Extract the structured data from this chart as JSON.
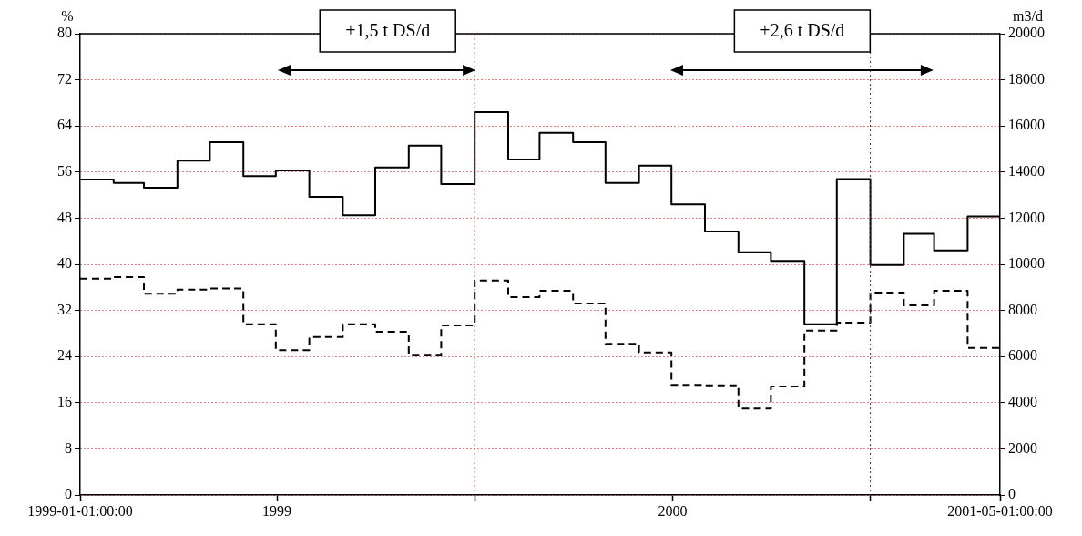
{
  "chart_data": {
    "type": "step",
    "x": [
      "1999-01",
      "1999-02",
      "1999-03",
      "1999-04",
      "1999-05",
      "1999-06",
      "1999-07",
      "1999-08",
      "1999-09",
      "1999-10",
      "1999-11",
      "1999-12",
      "2000-01",
      "2000-02",
      "2000-03",
      "2000-04",
      "2000-05",
      "2000-06",
      "2000-07",
      "2000-08",
      "2000-09",
      "2000-10",
      "2000-11",
      "2000-12",
      "2001-01",
      "2001-02",
      "2001-03",
      "2001-04",
      "2001-05"
    ],
    "series": [
      {
        "color": "#000000",
        "line_style": "solid",
        "values": [
          54.7,
          54.1,
          53.3,
          58.0,
          61.2,
          55.3,
          56.3,
          51.7,
          48.5,
          56.8,
          60.6,
          53.9,
          66.4,
          58.2,
          62.8,
          61.2,
          54.1,
          57.1,
          50.4,
          45.7,
          42.1,
          40.6,
          29.6,
          54.8,
          39.9,
          45.3,
          42.4,
          48.3,
          48.3
        ]
      },
      {
        "color": "#000000",
        "line_style": "dashed",
        "values": [
          37.5,
          37.8,
          34.9,
          35.6,
          35.8,
          29.6,
          25.1,
          27.4,
          29.6,
          28.3,
          24.3,
          29.4,
          37.2,
          34.3,
          35.4,
          33.2,
          26.2,
          24.7,
          19.1,
          19.0,
          15.0,
          18.8,
          28.5,
          29.9,
          35.1,
          32.9,
          35.4,
          25.5,
          25.5
        ]
      }
    ],
    "ylabel": "%",
    "y2label": "m3/d",
    "xlim": [
      "1999-01",
      "2001-05"
    ],
    "xticks": [
      {
        "value": "1999-01",
        "label": "1999-01-01:00:00"
      },
      {
        "value": "1999-07-02",
        "label": "1999"
      },
      {
        "value": "2000-01",
        "label": null
      },
      {
        "value": "2000-07-02",
        "label": "2000"
      },
      {
        "value": "2001-01",
        "label": null
      },
      {
        "value": "2001-05",
        "label": "2001-05-01:00:00"
      }
    ],
    "ylim": [
      0,
      80
    ],
    "yticks": [
      0,
      8,
      16,
      24,
      32,
      40,
      48,
      56,
      64,
      72,
      80
    ],
    "y2lim": [
      0,
      20000
    ],
    "y2ticks": [
      0,
      2000,
      4000,
      6000,
      8000,
      10000,
      12000,
      14000,
      16000,
      18000,
      20000
    ],
    "grid": "y",
    "ref_lines": [
      {
        "axis": "x",
        "value": "2000-01",
        "color": "#cc0000",
        "line_style": "dotted"
      },
      {
        "axis": "x",
        "value": "2001-01",
        "color": "#cc0000",
        "line_style": "dotted"
      }
    ],
    "annotations": [
      "+1,5 t DS/d",
      "+2,6 t DS/d"
    ],
    "legend": false
  }
}
